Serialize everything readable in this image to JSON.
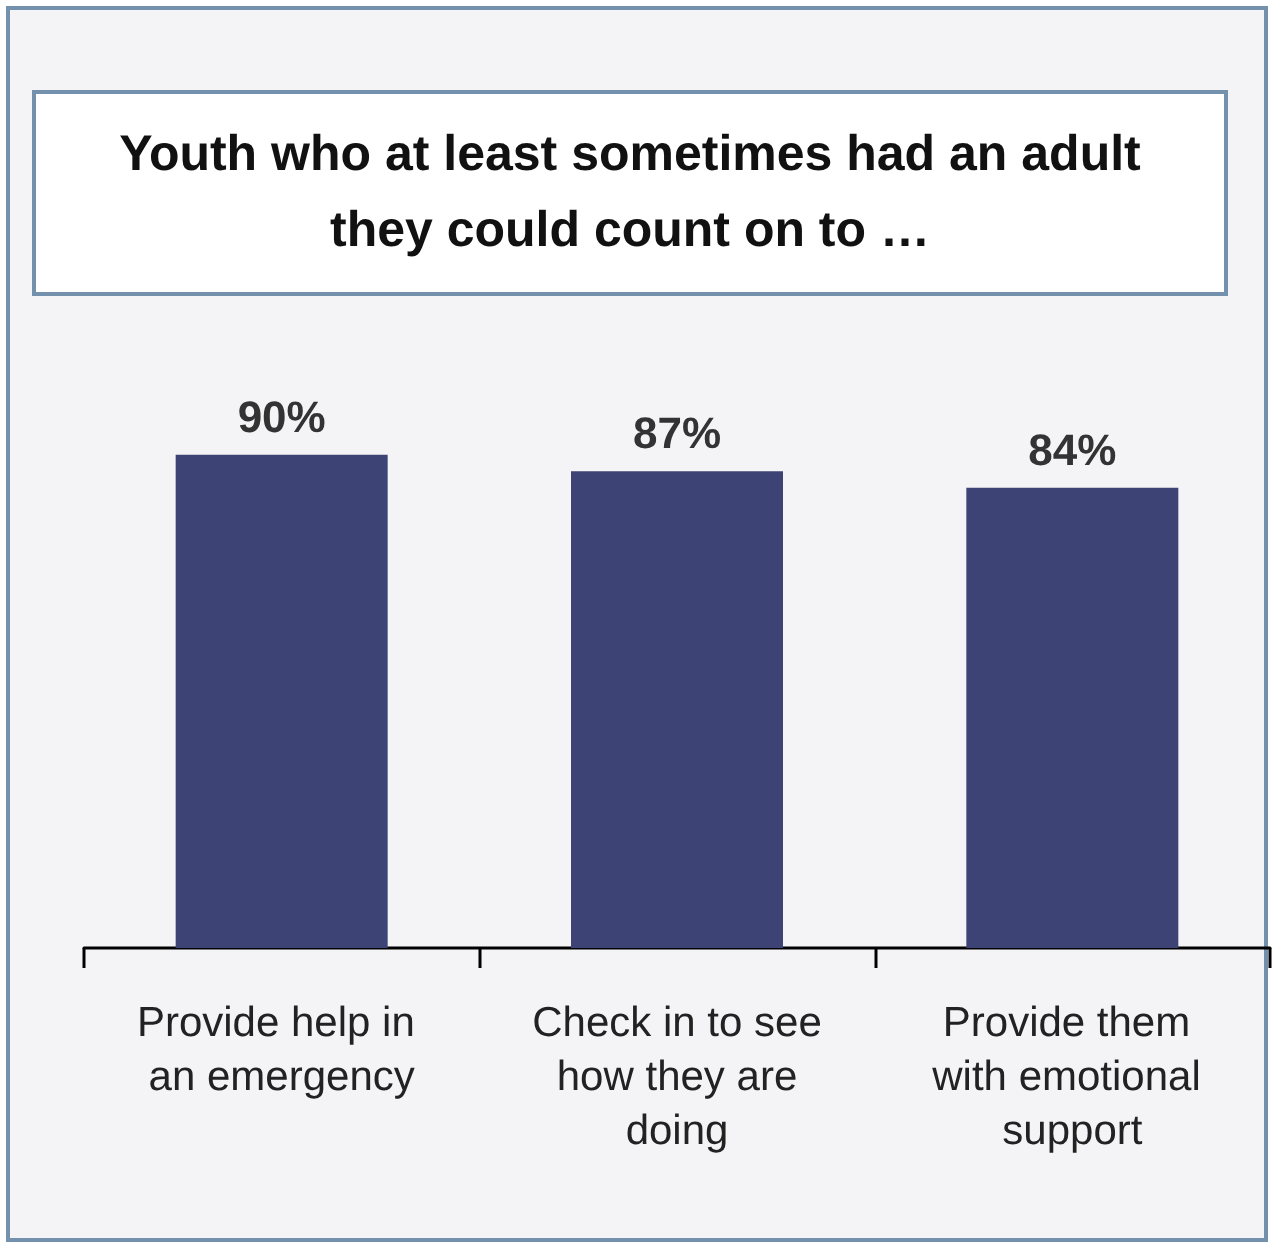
{
  "chart_data": {
    "type": "bar",
    "title": "Youth who at least sometimes had an adult they could count on to …",
    "categories": [
      "Provide help in an emergency",
      "Check in to see how they are doing",
      "Provide them with emotional support"
    ],
    "values": [
      90,
      87,
      84
    ],
    "value_labels": [
      "90%",
      "87%",
      "84%"
    ],
    "color": "#3d4475",
    "tick_labels": "x"
  }
}
